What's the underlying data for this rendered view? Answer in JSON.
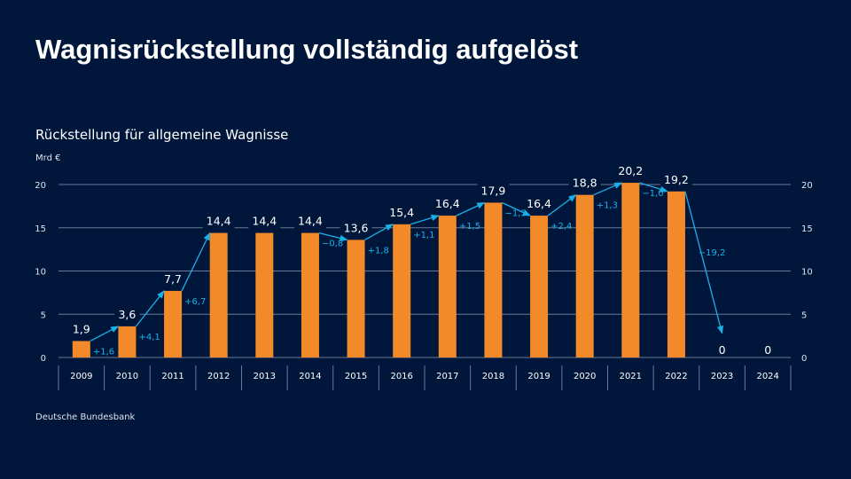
{
  "title": "Wagnisrückstellung vollständig aufgelöst",
  "chart_data": {
    "type": "bar",
    "title": "Rückstellung für allgemeine Wagnisse",
    "ylabel": "Mrd €",
    "ylim": [
      0,
      20
    ],
    "yticks": [
      0,
      5,
      10,
      15,
      20
    ],
    "grid": true,
    "categories": [
      "2009",
      "2010",
      "2011",
      "2012",
      "2013",
      "2014",
      "2015",
      "2016",
      "2017",
      "2018",
      "2019",
      "2020",
      "2021",
      "2022",
      "2023",
      "2024"
    ],
    "values": [
      1.9,
      3.6,
      7.7,
      14.4,
      14.4,
      14.4,
      13.6,
      15.4,
      16.4,
      17.9,
      16.4,
      18.8,
      20.2,
      19.2,
      0,
      0
    ],
    "value_labels": [
      "1,9",
      "3,6",
      "7,7",
      "14,4",
      "14,4",
      "14,4",
      "13,6",
      "15,4",
      "16,4",
      "17,9",
      "16,4",
      "18,8",
      "20,2",
      "19,2",
      "0",
      "0"
    ],
    "changes": [
      {
        "from": "2009",
        "to": "2010",
        "label": "+1,6"
      },
      {
        "from": "2010",
        "to": "2011",
        "label": "+4,1"
      },
      {
        "from": "2011",
        "to": "2012",
        "label": "+6,7"
      },
      {
        "from": "2014",
        "to": "2015",
        "label": "−0,8"
      },
      {
        "from": "2015",
        "to": "2016",
        "label": "+1,8"
      },
      {
        "from": "2016",
        "to": "2017",
        "label": "+1,1"
      },
      {
        "from": "2017",
        "to": "2018",
        "label": "+1,5"
      },
      {
        "from": "2018",
        "to": "2019",
        "label": "−1,5"
      },
      {
        "from": "2019",
        "to": "2020",
        "label": "+2,4"
      },
      {
        "from": "2020",
        "to": "2021",
        "label": "+1,3"
      },
      {
        "from": "2021",
        "to": "2022",
        "label": "−1,0"
      },
      {
        "from": "2022",
        "to": "2023",
        "label": "−19,2"
      }
    ],
    "colors": {
      "bar": "#f28a2a",
      "arrow": "#1bb0e8",
      "change_text": "#1bb0e8",
      "grid": "#6a7a96",
      "background": "#00173b"
    }
  },
  "source": "Deutsche Bundesbank"
}
